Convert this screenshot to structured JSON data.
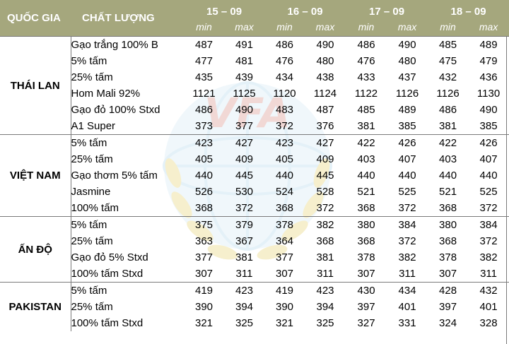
{
  "header": {
    "country_label": "QUỐC GIA",
    "quality_label": "CHẤT LƯỢNG",
    "dates": [
      "15 – 09",
      "16 – 09",
      "17 – 09",
      "18 – 09"
    ],
    "min_label": "min",
    "max_label": "max"
  },
  "groups": [
    {
      "country": "THÁI LAN",
      "rows": [
        {
          "quality": "Gạo trắng 100% B",
          "values": [
            "487",
            "491",
            "486",
            "490",
            "486",
            "490",
            "485",
            "489"
          ]
        },
        {
          "quality": "5% tấm",
          "values": [
            "477",
            "481",
            "476",
            "480",
            "476",
            "480",
            "475",
            "479"
          ]
        },
        {
          "quality": "25% tấm",
          "values": [
            "435",
            "439",
            "434",
            "438",
            "433",
            "437",
            "432",
            "436"
          ]
        },
        {
          "quality": "Hom Mali 92%",
          "values": [
            "1121",
            "1125",
            "1120",
            "1124",
            "1122",
            "1126",
            "1126",
            "1130"
          ]
        },
        {
          "quality": "Gạo đỏ 100% Stxd",
          "values": [
            "486",
            "490",
            "483",
            "487",
            "485",
            "489",
            "486",
            "490"
          ]
        },
        {
          "quality": "A1 Super",
          "values": [
            "373",
            "377",
            "372",
            "376",
            "381",
            "385",
            "381",
            "385"
          ]
        }
      ]
    },
    {
      "country": "VIỆT NAM",
      "rows": [
        {
          "quality": "5% tấm",
          "values": [
            "423",
            "427",
            "423",
            "427",
            "422",
            "426",
            "422",
            "426"
          ]
        },
        {
          "quality": "25% tấm",
          "values": [
            "405",
            "409",
            "405",
            "409",
            "403",
            "407",
            "403",
            "407"
          ]
        },
        {
          "quality": "Gạo thơm 5% tấm",
          "values": [
            "440",
            "445",
            "440",
            "445",
            "440",
            "440",
            "440",
            "440"
          ]
        },
        {
          "quality": "Jasmine",
          "values": [
            "526",
            "530",
            "524",
            "528",
            "521",
            "525",
            "521",
            "525"
          ]
        },
        {
          "quality": "100% tấm",
          "values": [
            "368",
            "372",
            "368",
            "372",
            "368",
            "372",
            "368",
            "372"
          ]
        }
      ]
    },
    {
      "country": "ẤN ĐỘ",
      "rows": [
        {
          "quality": "5% tấm",
          "values": [
            "375",
            "379",
            "378",
            "382",
            "380",
            "384",
            "380",
            "384"
          ]
        },
        {
          "quality": "25% tấm",
          "values": [
            "363",
            "367",
            "364",
            "368",
            "368",
            "372",
            "368",
            "372"
          ]
        },
        {
          "quality": "Gạo đỏ 5% Stxd",
          "values": [
            "377",
            "381",
            "377",
            "381",
            "378",
            "382",
            "378",
            "382"
          ]
        },
        {
          "quality": "100% tấm Stxd",
          "values": [
            "307",
            "311",
            "307",
            "311",
            "307",
            "311",
            "307",
            "311"
          ]
        }
      ]
    },
    {
      "country": "PAKISTAN",
      "rows": [
        {
          "quality": "5% tấm",
          "values": [
            "419",
            "423",
            "419",
            "423",
            "430",
            "434",
            "428",
            "432"
          ]
        },
        {
          "quality": "25% tấm",
          "values": [
            "390",
            "394",
            "390",
            "394",
            "397",
            "401",
            "397",
            "401"
          ]
        },
        {
          "quality": "100% tấm Stxd",
          "values": [
            "321",
            "325",
            "321",
            "325",
            "327",
            "331",
            "324",
            "328"
          ]
        }
      ]
    }
  ],
  "watermark": {
    "logo_text": "VFA",
    "colors": {
      "text": "#e6b9b4",
      "globe": "#cfe6f3",
      "wheat": "#efe2a6"
    }
  }
}
